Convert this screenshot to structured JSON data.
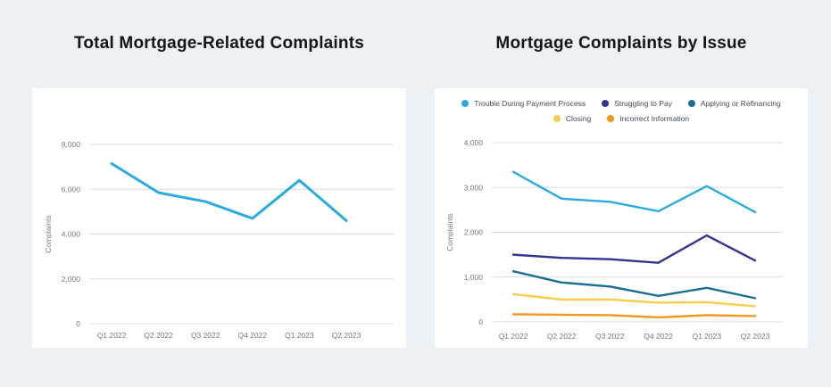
{
  "page": {
    "background_color": "#ECF1F5",
    "card_color": "#FFFFFF"
  },
  "left_panel": {
    "title": "Total Mortgage-Related Complaints"
  },
  "right_panel": {
    "title": "Mortgage Complaints by Issue"
  },
  "chart_data": [
    {
      "type": "line",
      "title": "Total Mortgage-Related Complaints",
      "categories": [
        "Q1 2022",
        "Q2 2022",
        "Q3 2022",
        "Q4 2022",
        "Q1 2023",
        "Q2 2023"
      ],
      "series": [
        {
          "name": "Total Mortgage-Related Complaints",
          "color": "#29ABE2",
          "values": [
            7150,
            5850,
            5450,
            4700,
            6400,
            4600
          ]
        }
      ],
      "xlabel": "",
      "ylabel": "Complaints",
      "ylim": [
        0,
        8000
      ],
      "yticks": [
        0,
        2000,
        4000,
        6000,
        8000
      ],
      "ytick_labels": [
        "0",
        "2,000",
        "4,000",
        "6,000",
        "8,000"
      ],
      "grid": true,
      "legend": false
    },
    {
      "type": "line",
      "title": "Mortgage Complaints by Issue",
      "categories": [
        "Q1 2022",
        "Q2 2022",
        "Q3 2022",
        "Q4 2022",
        "Q1 2023",
        "Q2 2023"
      ],
      "series": [
        {
          "name": "Trouble During Payment Process",
          "color": "#29ABE2",
          "values": [
            3350,
            2750,
            2680,
            2470,
            3030,
            2450
          ]
        },
        {
          "name": "Struggling to Pay",
          "color": "#32348E",
          "values": [
            1500,
            1430,
            1400,
            1320,
            1930,
            1370
          ]
        },
        {
          "name": "Applying or Refinancing",
          "color": "#1C6E93",
          "values": [
            1130,
            880,
            790,
            580,
            760,
            530
          ]
        },
        {
          "name": "Closing",
          "color": "#F6CE4F",
          "values": [
            620,
            500,
            500,
            430,
            440,
            350
          ]
        },
        {
          "name": "Incorrect Information",
          "color": "#F2961D",
          "values": [
            170,
            160,
            150,
            100,
            150,
            130
          ]
        }
      ],
      "xlabel": "",
      "ylabel": "Complaints",
      "ylim": [
        0,
        4000
      ],
      "yticks": [
        0,
        1000,
        2000,
        3000,
        4000
      ],
      "ytick_labels": [
        "0",
        "1,000",
        "2,000",
        "3,000",
        "4,000"
      ],
      "grid": true,
      "legend": true,
      "legend_position": "top"
    }
  ]
}
